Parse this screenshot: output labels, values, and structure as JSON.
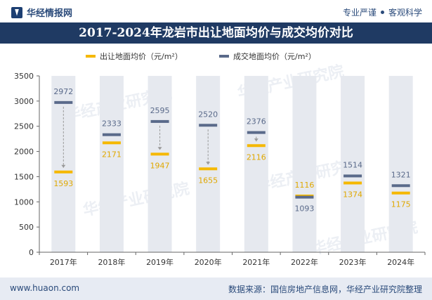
{
  "header": {
    "brand": "华经情报网",
    "tagline_left": "专业严谨",
    "tagline_right": "客观科学"
  },
  "footer": {
    "url": "www.huaon.com",
    "source": "数据来源：国信房地产信息网，华经产业研究院整理"
  },
  "watermark": "华经产业研究院",
  "chart_data": {
    "type": "bar",
    "title": "2017-2024年龙岩市出让地面均价与成交均价对比",
    "categories": [
      "2017年",
      "2018年",
      "2019年",
      "2020年",
      "2021年",
      "2022年",
      "2023年",
      "2024年"
    ],
    "series": [
      {
        "name": "出让地面均价（元/m²）",
        "color": "#f5b800",
        "values": [
          1593,
          2171,
          1947,
          1655,
          2116,
          1116,
          1374,
          1175
        ]
      },
      {
        "name": "成交地面均价（元/m²）",
        "color": "#5a6a8a",
        "values": [
          2972,
          2333,
          2595,
          2520,
          2376,
          1093,
          1514,
          1321
        ]
      }
    ],
    "ylim": [
      0,
      3500
    ],
    "yticks": [
      0,
      500,
      1000,
      1500,
      2000,
      2500,
      3000,
      3500
    ],
    "xlabel": "",
    "ylabel": ""
  }
}
